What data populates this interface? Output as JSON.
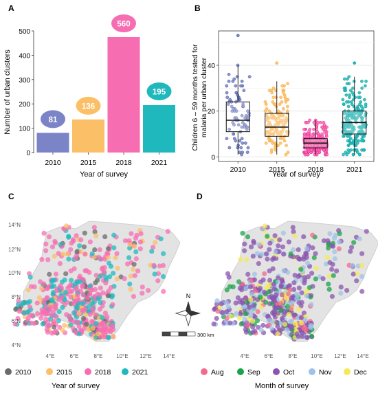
{
  "colors": {
    "y2010": "#7b84c6",
    "y2015": "#fbbf67",
    "y2018": "#f76db2",
    "y2021": "#1fb9bd",
    "m_aug": "#f26b8c",
    "m_sep": "#1aa34a",
    "m_oct": "#8a55b0",
    "m_nov": "#9ec3e6",
    "m_dec": "#f5ea55",
    "map_land": "#e3e3e3",
    "boxplot_b_2010": "#3b4b9c",
    "boxplot_b_2015": "#f7a535",
    "boxplot_b_2018": "#e7198c",
    "boxplot_b_2021": "#0c9e92"
  },
  "panel_a": {
    "letter": "A",
    "ylabel": "Number of urban clusters",
    "xlabel": "Year of survey"
  },
  "panel_b": {
    "letter": "B",
    "ylabel_line1": "Children 6 – 59 months tested for",
    "ylabel_line2": "malaria per urban cluster",
    "xlabel": "Year of survey"
  },
  "panel_c": {
    "letter": "C",
    "legend_title": "Year of survey",
    "legend": [
      "2010",
      "2015",
      "2018",
      "2021"
    ]
  },
  "panel_d": {
    "letter": "D",
    "legend_title": "Month of survey",
    "legend": [
      "Aug",
      "Sep",
      "Oct",
      "Nov",
      "Dec"
    ]
  },
  "map": {
    "lat_labels": [
      "14°N",
      "12°N",
      "10°N",
      "8°N",
      "6°N",
      "4°N"
    ],
    "lon_labels": [
      "4°E",
      "6°E",
      "8°E",
      "10°E",
      "12°E",
      "14°E"
    ],
    "compass_label": "N",
    "scale_label": "300 km"
  },
  "chart_data": [
    {
      "type": "bar",
      "panel": "A",
      "categories": [
        "2010",
        "2015",
        "2018",
        "2021"
      ],
      "values": [
        81,
        136,
        560,
        195
      ],
      "data_labels": [
        "81",
        "136",
        "560",
        "195"
      ],
      "ylim": [
        0,
        500
      ],
      "yticks": [
        0,
        100,
        200,
        300,
        400,
        500
      ],
      "xlabel": "Year of survey",
      "ylabel": "Number of urban clusters"
    },
    {
      "type": "scatter",
      "subtype": "boxplot-with-jitter",
      "panel": "B",
      "categories": [
        "2010",
        "2015",
        "2018",
        "2021"
      ],
      "boxes": [
        {
          "name": "2010",
          "q1": 11,
          "median": 16,
          "q3": 24,
          "whisker_low": 1,
          "whisker_high": 40,
          "max": 53
        },
        {
          "name": "2015",
          "q1": 9,
          "median": 13,
          "q3": 19,
          "whisker_low": 1,
          "whisker_high": 33,
          "max": 41
        },
        {
          "name": "2018",
          "q1": 4,
          "median": 6,
          "q3": 8,
          "whisker_low": 1,
          "whisker_high": 16,
          "max": 16
        },
        {
          "name": "2021",
          "q1": 10,
          "median": 15,
          "q3": 20,
          "whisker_low": 1,
          "whisker_high": 35,
          "max": 41
        }
      ],
      "ylim": [
        0,
        55
      ],
      "yticks": [
        0,
        20,
        40
      ],
      "xlabel": "Year of survey",
      "ylabel": "Children 6 – 59 months tested for malaria per urban cluster"
    }
  ]
}
